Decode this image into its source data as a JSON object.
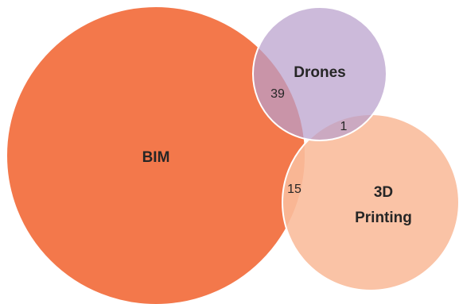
{
  "colors": {
    "bim": "#f3784b",
    "drones": "#b9a0cc",
    "printing": "#f9bc9c",
    "stroke": "#ffffff",
    "text": "#262626"
  },
  "sets": {
    "bim": {
      "label": "BIM"
    },
    "drones": {
      "label": "Drones"
    },
    "printing": {
      "label_line1": "3D",
      "label_line2": "Printing"
    }
  },
  "overlaps": {
    "bim_drones": "39",
    "drones_printing": "1",
    "bim_printing": "15"
  }
}
